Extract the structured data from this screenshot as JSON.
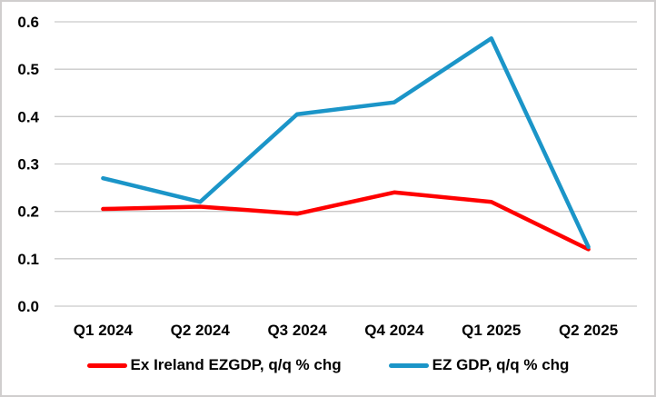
{
  "chart_data": {
    "type": "line",
    "title": "",
    "categories": [
      "Q1 2024",
      "Q2 2024",
      "Q3 2024",
      "Q4 2024",
      "Q1 2025",
      "Q2 2025"
    ],
    "series": [
      {
        "name": "Ex Ireland EZGDP, q/q % chg",
        "color": "#ff0000",
        "values": [
          0.205,
          0.21,
          0.195,
          0.24,
          0.22,
          0.12
        ]
      },
      {
        "name": "EZ GDP, q/q % chg",
        "color": "#1b95c8",
        "values": [
          0.27,
          0.22,
          0.405,
          0.43,
          0.565,
          0.125
        ]
      }
    ],
    "xlabel": "",
    "ylabel": "",
    "ylim": [
      0.0,
      0.6
    ],
    "y_ticks": [
      {
        "v": 0.0,
        "label": "0.0"
      },
      {
        "v": 0.1,
        "label": "0.1"
      },
      {
        "v": 0.2,
        "label": "0.2"
      },
      {
        "v": 0.3,
        "label": "0.3"
      },
      {
        "v": 0.4,
        "label": "0.4"
      },
      {
        "v": 0.5,
        "label": "0.5"
      },
      {
        "v": 0.6,
        "label": "0.6"
      }
    ],
    "grid": true,
    "gridline_color": "#c9c9c9",
    "legend_position": "bottom"
  }
}
